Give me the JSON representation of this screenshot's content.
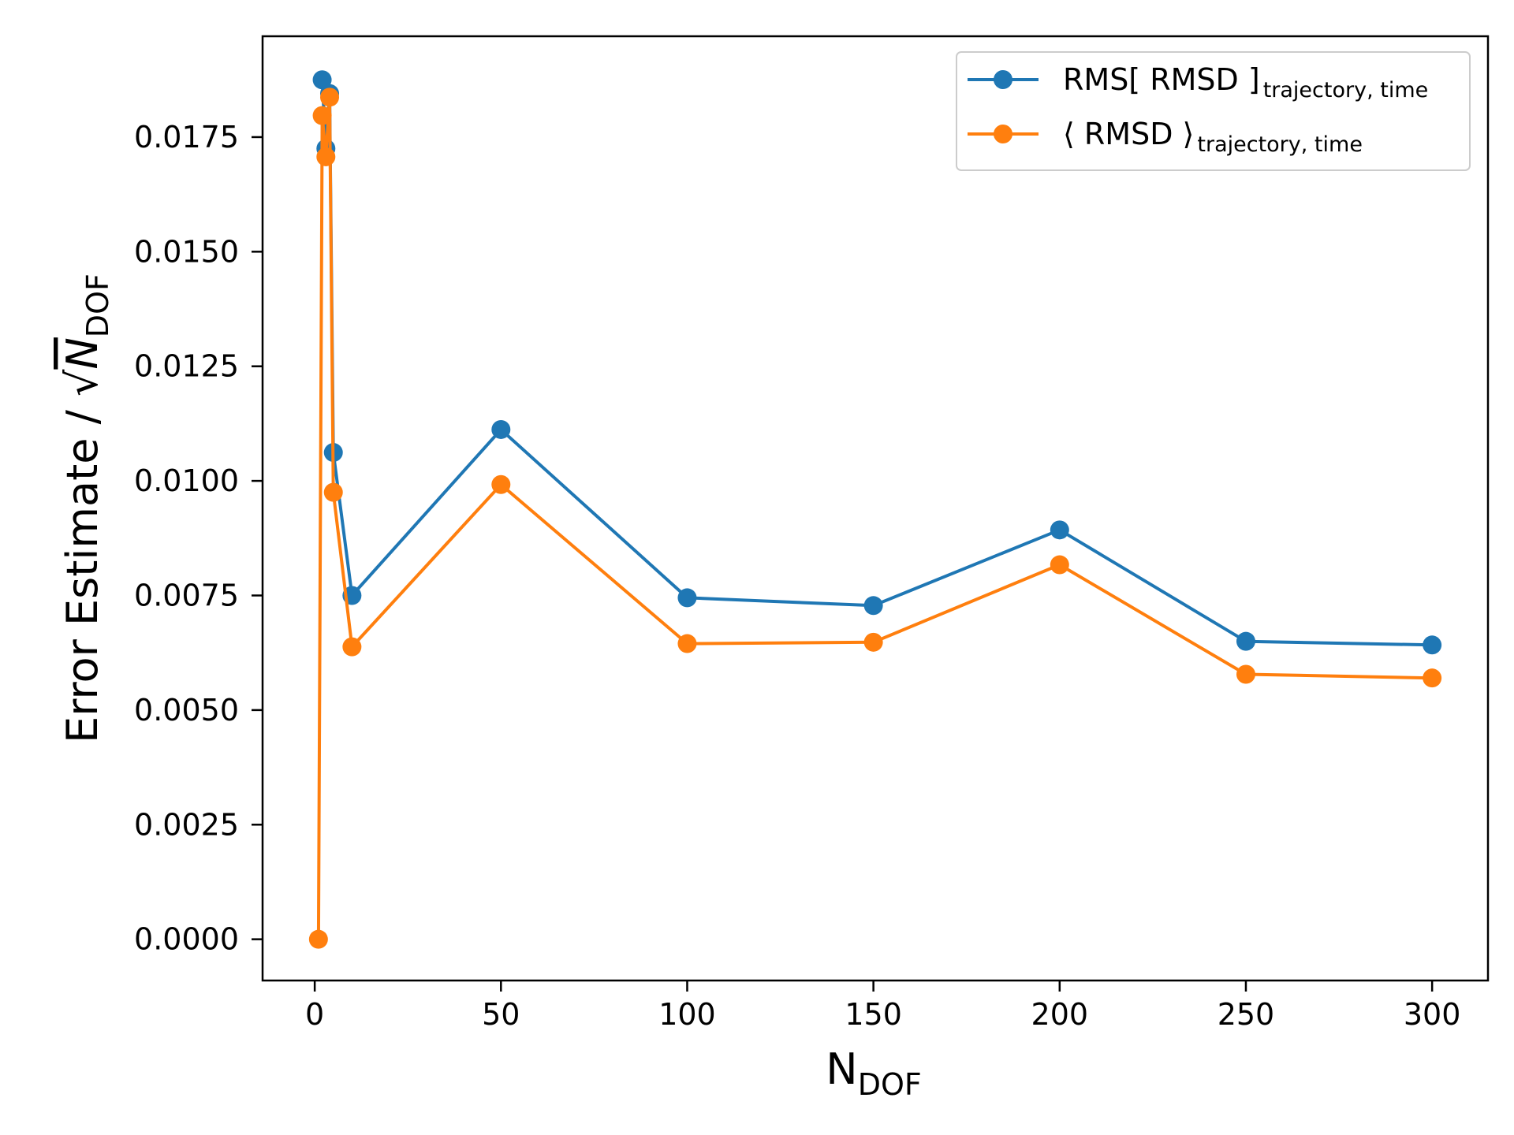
{
  "chart_data": {
    "type": "line",
    "xlim": [
      -14,
      315
    ],
    "ylim": [
      -0.0009,
      0.0197
    ],
    "x_ticks": [
      0,
      50,
      100,
      150,
      200,
      250,
      300
    ],
    "y_ticks": [
      0.0,
      0.0025,
      0.005,
      0.0075,
      0.01,
      0.0125,
      0.015,
      0.0175
    ],
    "x_tick_labels": [
      "0",
      "50",
      "100",
      "150",
      "200",
      "250",
      "300"
    ],
    "y_tick_labels": [
      "0.0000",
      "0.0025",
      "0.0050",
      "0.0075",
      "0.0100",
      "0.0125",
      "0.0150",
      "0.0175"
    ],
    "xlabel": {
      "main": "N",
      "sub": "DOF"
    },
    "ylabel": {
      "prefix": "Error Estimate / ",
      "radical": "√",
      "var": "N",
      "sub": "DOF"
    },
    "legend_position": "upper-right",
    "grid": false,
    "series": [
      {
        "name": {
          "main": "RMS[ RMSD ]",
          "sub": "trajectory, time"
        },
        "color": "#1f77b4",
        "x": [
          2,
          3,
          4,
          5,
          10,
          50,
          100,
          150,
          200,
          250,
          300
        ],
        "y": [
          0.01875,
          0.01725,
          0.01845,
          0.01062,
          0.0075,
          0.01112,
          0.00745,
          0.00728,
          0.00893,
          0.0065,
          0.00642
        ]
      },
      {
        "name": {
          "main": "⟨ RMSD ⟩",
          "sub": "trajectory, time"
        },
        "color": "#ff7f0e",
        "x": [
          1,
          2,
          3,
          4,
          5,
          10,
          50,
          100,
          150,
          200,
          250,
          300
        ],
        "y": [
          0.0,
          0.01797,
          0.01707,
          0.01837,
          0.00975,
          0.00638,
          0.00992,
          0.00645,
          0.00648,
          0.00817,
          0.00578,
          0.0057
        ]
      }
    ]
  }
}
